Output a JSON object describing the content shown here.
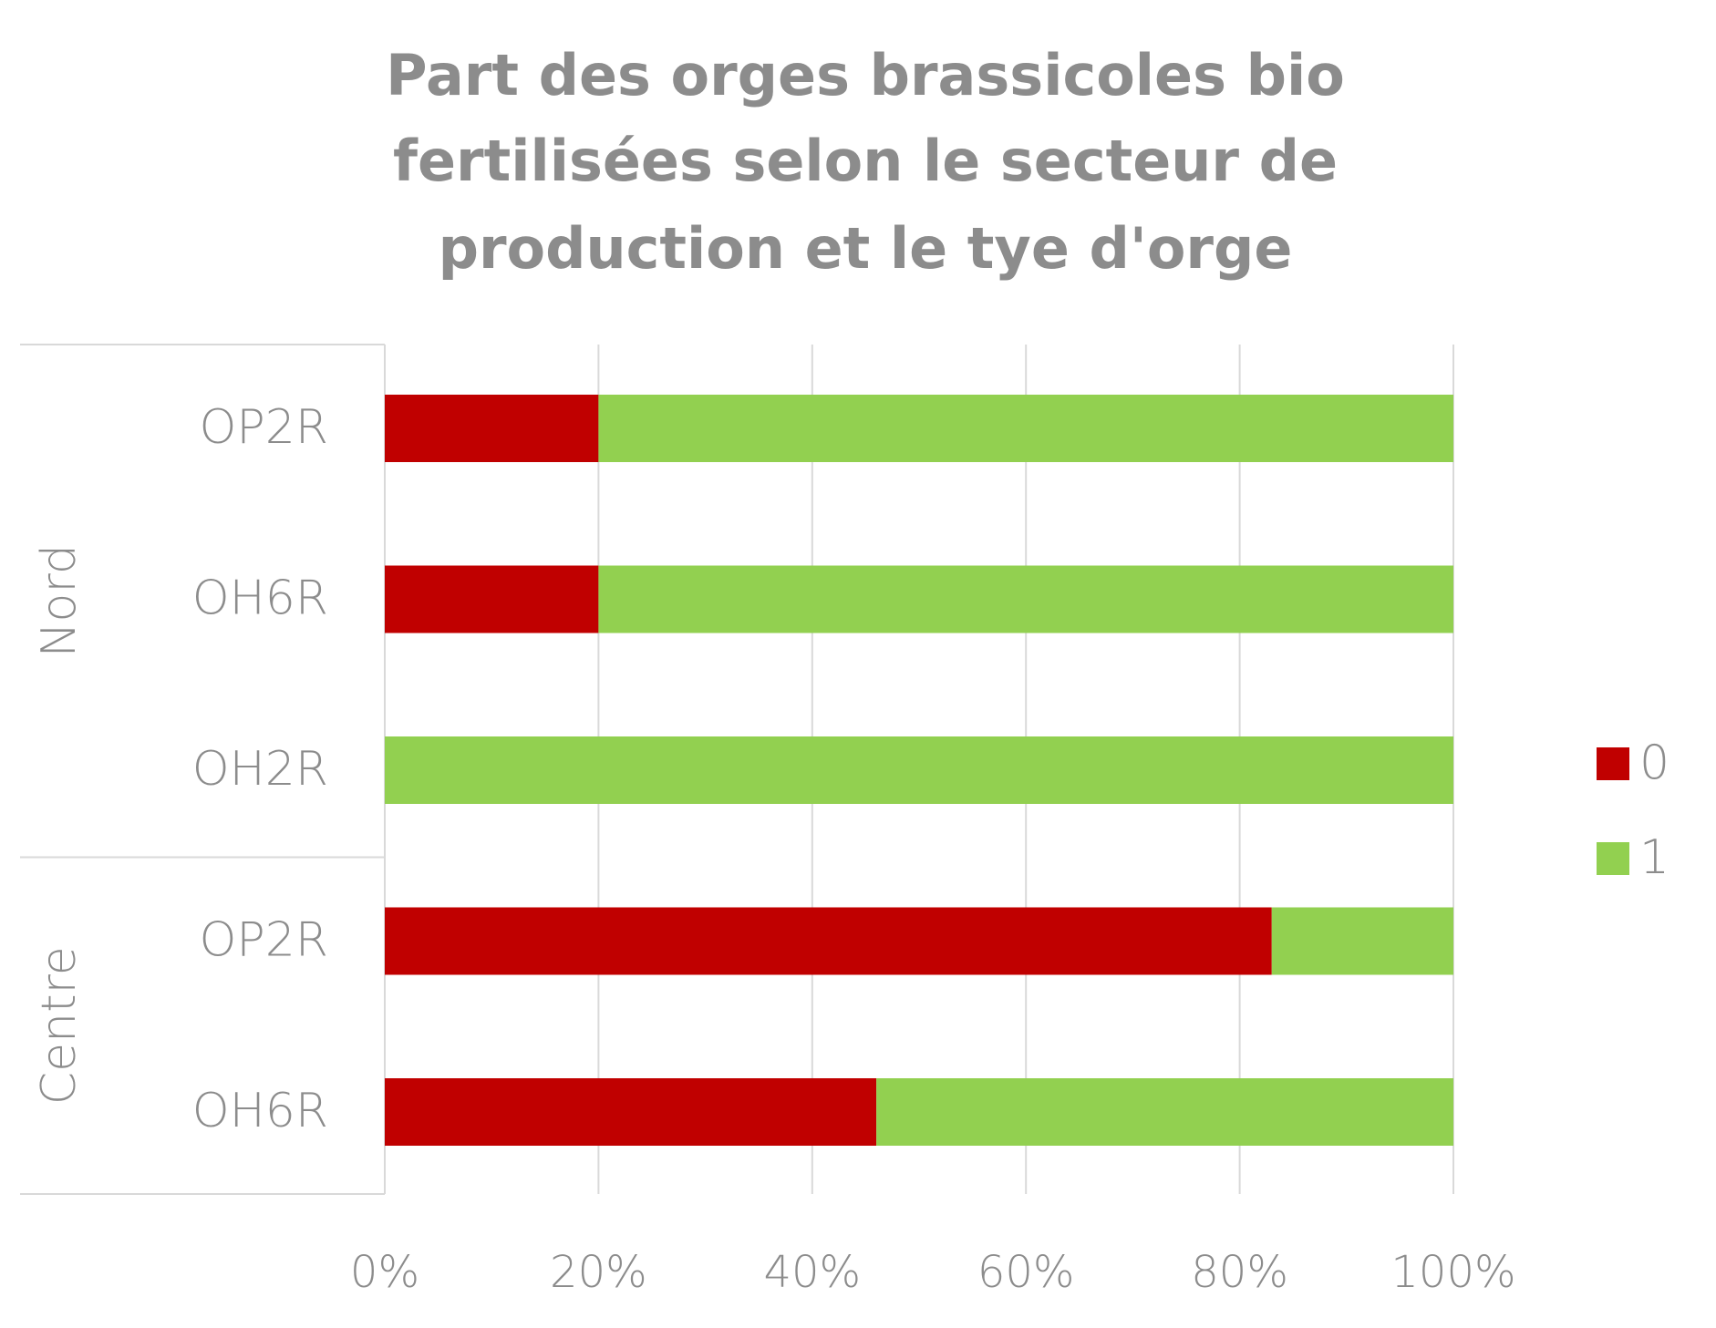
{
  "chart_data": {
    "type": "bar",
    "orientation": "horizontal",
    "stacked": "percent",
    "title": "Part des orges brassicoles bio fertilisées selon le secteur de production et le tye d'orge",
    "title_lines": [
      "Part des orges brassicoles bio",
      "fertilisées selon le secteur de",
      "production et le tye d'orge"
    ],
    "groups": [
      {
        "label": "Nord",
        "categories": [
          "OP2R",
          "OH6R",
          "OH2R"
        ]
      },
      {
        "label": "Centre",
        "categories": [
          "OP2R",
          "OH6R"
        ]
      }
    ],
    "series": [
      {
        "name": "0",
        "color": "#c00000",
        "values": [
          20,
          20,
          0,
          83,
          46
        ]
      },
      {
        "name": "1",
        "color": "#92d050",
        "values": [
          80,
          80,
          100,
          17,
          54
        ]
      }
    ],
    "xlim": [
      0,
      100
    ],
    "x_ticks": [
      "0%",
      "20%",
      "40%",
      "60%",
      "80%",
      "100%"
    ],
    "grid": true,
    "legend_position": "right"
  }
}
